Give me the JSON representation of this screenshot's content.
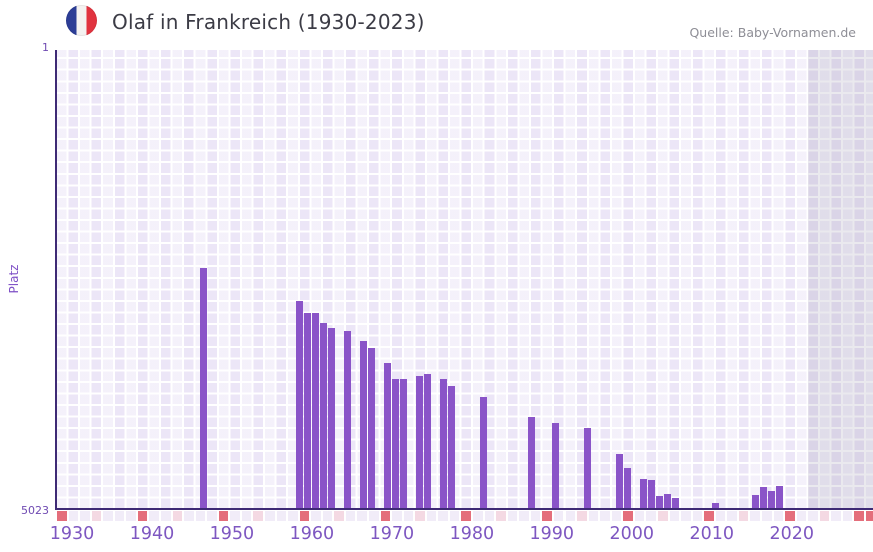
{
  "header": {
    "title": "Olaf in Frankreich (1930-2023)",
    "source": "Quelle: Baby-Vornamen.de",
    "flag_icon": "france-flag-icon"
  },
  "chart_data": {
    "type": "bar",
    "title": "Olaf in Frankreich (1930-2023)",
    "xlabel": "",
    "ylabel": "Platz",
    "y_axis": {
      "top_label": "1",
      "bottom_label": "5023",
      "min": 1,
      "max": 5023,
      "inverted": true
    },
    "x_ticks": [
      "1930",
      "1940",
      "1950",
      "1960",
      "1970",
      "1980",
      "1990",
      "2000",
      "2010",
      "2020"
    ],
    "x_range": [
      1930,
      2031
    ],
    "grid": true,
    "legend": "none",
    "colors": {
      "bar": "#8a54c8",
      "axis": "#3e2a75",
      "grid_cell": "#ece6f7",
      "strip_cell": "#f1ecf8",
      "strip_decade": "#e46e7b",
      "strip_halfdecade": "#f4d9e3"
    },
    "points": [
      {
        "year": 1946,
        "rank": 2390
      },
      {
        "year": 1958,
        "rank": 2752
      },
      {
        "year": 1959,
        "rank": 2884
      },
      {
        "year": 1960,
        "rank": 2884
      },
      {
        "year": 1961,
        "rank": 2994
      },
      {
        "year": 1962,
        "rank": 3048
      },
      {
        "year": 1964,
        "rank": 3081
      },
      {
        "year": 1966,
        "rank": 3190
      },
      {
        "year": 1967,
        "rank": 3268
      },
      {
        "year": 1969,
        "rank": 3433
      },
      {
        "year": 1970,
        "rank": 3608
      },
      {
        "year": 1971,
        "rank": 3608
      },
      {
        "year": 1973,
        "rank": 3575
      },
      {
        "year": 1974,
        "rank": 3553
      },
      {
        "year": 1976,
        "rank": 3608
      },
      {
        "year": 1977,
        "rank": 3684
      },
      {
        "year": 1981,
        "rank": 3805
      },
      {
        "year": 1987,
        "rank": 4025
      },
      {
        "year": 1990,
        "rank": 4090
      },
      {
        "year": 1994,
        "rank": 4145
      },
      {
        "year": 1998,
        "rank": 4430
      },
      {
        "year": 1999,
        "rank": 4584
      },
      {
        "year": 2001,
        "rank": 4705
      },
      {
        "year": 2002,
        "rank": 4716
      },
      {
        "year": 2003,
        "rank": 4891
      },
      {
        "year": 2004,
        "rank": 4869
      },
      {
        "year": 2005,
        "rank": 4913
      },
      {
        "year": 2010,
        "rank": 4967
      },
      {
        "year": 2015,
        "rank": 4880
      },
      {
        "year": 2016,
        "rank": 4792
      },
      {
        "year": 2017,
        "rank": 4836
      },
      {
        "year": 2018,
        "rank": 4781
      }
    ]
  }
}
